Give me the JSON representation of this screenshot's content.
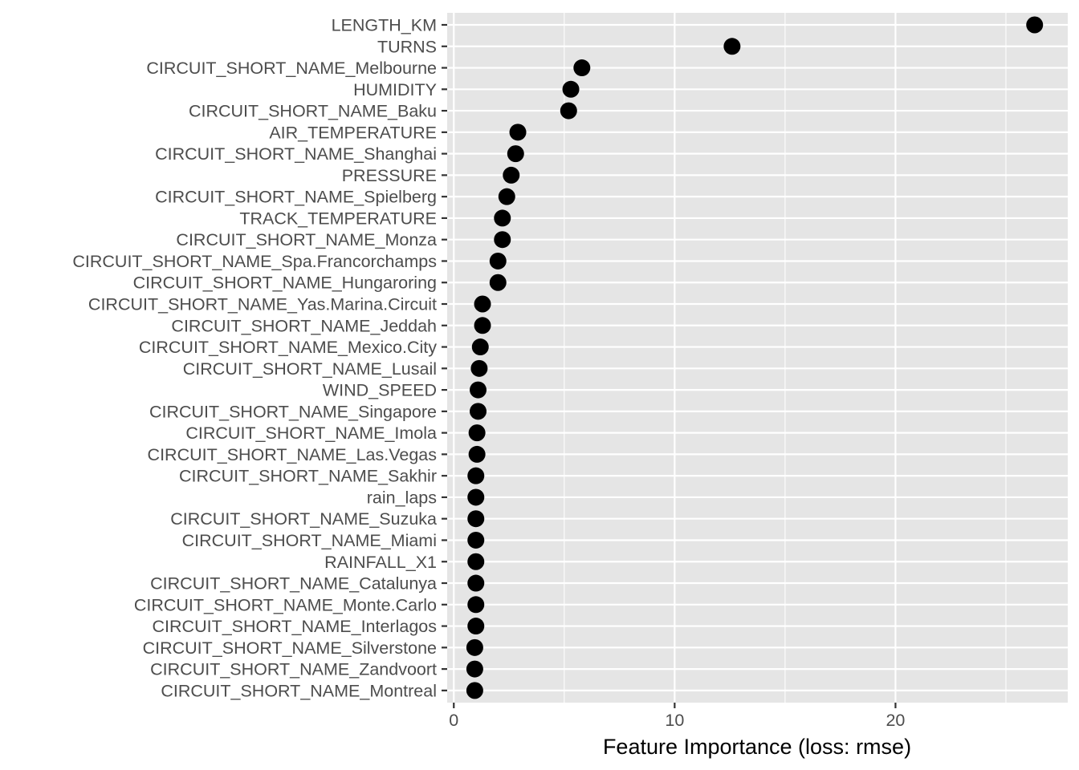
{
  "chart_data": {
    "type": "scatter",
    "title": "",
    "xlabel": "Feature Importance (loss: rmse)",
    "ylabel": "",
    "xlim": [
      -0.3,
      27.8
    ],
    "x_ticks": [
      0,
      10,
      20
    ],
    "x_tick_labels": [
      "0",
      "10",
      "20"
    ],
    "x_minor_ticks": [
      5,
      15,
      25
    ],
    "grid": true,
    "legend": "none",
    "point_color": "#000000",
    "panel_background": "#e5e5e5",
    "categories": [
      "LENGTH_KM",
      "TURNS",
      "CIRCUIT_SHORT_NAME_Melbourne",
      "HUMIDITY",
      "CIRCUIT_SHORT_NAME_Baku",
      "AIR_TEMPERATURE",
      "CIRCUIT_SHORT_NAME_Shanghai",
      "PRESSURE",
      "CIRCUIT_SHORT_NAME_Spielberg",
      "TRACK_TEMPERATURE",
      "CIRCUIT_SHORT_NAME_Monza",
      "CIRCUIT_SHORT_NAME_Spa.Francorchamps",
      "CIRCUIT_SHORT_NAME_Hungaroring",
      "CIRCUIT_SHORT_NAME_Yas.Marina.Circuit",
      "CIRCUIT_SHORT_NAME_Jeddah",
      "CIRCUIT_SHORT_NAME_Mexico.City",
      "CIRCUIT_SHORT_NAME_Lusail",
      "WIND_SPEED",
      "CIRCUIT_SHORT_NAME_Singapore",
      "CIRCUIT_SHORT_NAME_Imola",
      "CIRCUIT_SHORT_NAME_Las.Vegas",
      "CIRCUIT_SHORT_NAME_Sakhir",
      "rain_laps",
      "CIRCUIT_SHORT_NAME_Suzuka",
      "CIRCUIT_SHORT_NAME_Miami",
      "RAINFALL_X1",
      "CIRCUIT_SHORT_NAME_Catalunya",
      "CIRCUIT_SHORT_NAME_Monte.Carlo",
      "CIRCUIT_SHORT_NAME_Interlagos",
      "CIRCUIT_SHORT_NAME_Silverstone",
      "CIRCUIT_SHORT_NAME_Zandvoort",
      "CIRCUIT_SHORT_NAME_Montreal"
    ],
    "values": [
      26.3,
      12.6,
      5.8,
      5.3,
      5.2,
      2.9,
      2.8,
      2.6,
      2.4,
      2.2,
      2.2,
      2.0,
      2.0,
      1.3,
      1.3,
      1.2,
      1.15,
      1.1,
      1.1,
      1.05,
      1.05,
      1.0,
      1.0,
      1.0,
      1.0,
      1.0,
      1.0,
      1.0,
      1.0,
      0.95,
      0.95,
      0.95
    ]
  }
}
